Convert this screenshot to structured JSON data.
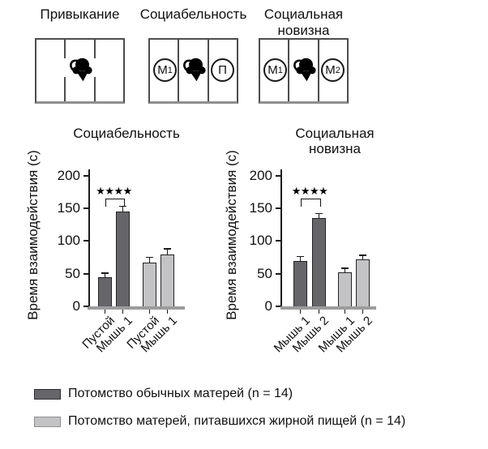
{
  "diagrams": {
    "panels": [
      {
        "title_lines": [
          "Привыкание"
        ]
      },
      {
        "title_lines": [
          "Социабельность"
        ],
        "left_circle": {
          "main": "М",
          "sub": "1"
        },
        "right_circle": {
          "main": "П",
          "sub": ""
        }
      },
      {
        "title_lines": [
          "Социальная",
          "новизна"
        ],
        "left_circle": {
          "main": "М",
          "sub": "1"
        },
        "right_circle": {
          "main": "М",
          "sub": "2"
        }
      }
    ]
  },
  "chart_data": [
    {
      "type": "bar",
      "title_lines": [
        "Социабельность"
      ],
      "ylabel": "Время взаимодействия (с)",
      "categories": [
        "Пустой",
        "Мышь 1",
        "Пустой",
        "Мышь 1"
      ],
      "values": [
        45,
        145,
        67,
        80
      ],
      "errors": [
        6,
        8,
        8,
        8
      ],
      "groups": [
        "control",
        "control",
        "hfd",
        "hfd"
      ],
      "yticks": [
        0,
        50,
        100,
        150,
        200
      ],
      "ylim": [
        0,
        210
      ],
      "grid": false,
      "significance": {
        "label": "★★★★",
        "between": [
          0,
          1
        ]
      }
    },
    {
      "type": "bar",
      "title_lines": [
        "Социальная",
        "новизна"
      ],
      "ylabel": "Время взаимодействия (с)",
      "categories": [
        "Мышь 1",
        "Мышь 2",
        "Мышь 1",
        "Мышь 2"
      ],
      "values": [
        70,
        135,
        52,
        72
      ],
      "errors": [
        6,
        7,
        6,
        6
      ],
      "groups": [
        "control",
        "control",
        "hfd",
        "hfd"
      ],
      "yticks": [
        0,
        50,
        100,
        150,
        200
      ],
      "ylim": [
        0,
        210
      ],
      "grid": false,
      "significance": {
        "label": "★★★★",
        "between": [
          0,
          1
        ]
      }
    }
  ],
  "legend": {
    "items": [
      {
        "label": "Потомство обычных матерей (n = 14)",
        "color": "#66666a",
        "group": "control"
      },
      {
        "label": "Потомство матерей, питавшихся жирной пищей (n = 14)",
        "color": "#c3c3c6",
        "group": "hfd"
      }
    ]
  },
  "colors": {
    "bar_dark": "#66666a",
    "bar_light": "#c3c3c6",
    "axis_gray": "#9c9c9c"
  }
}
